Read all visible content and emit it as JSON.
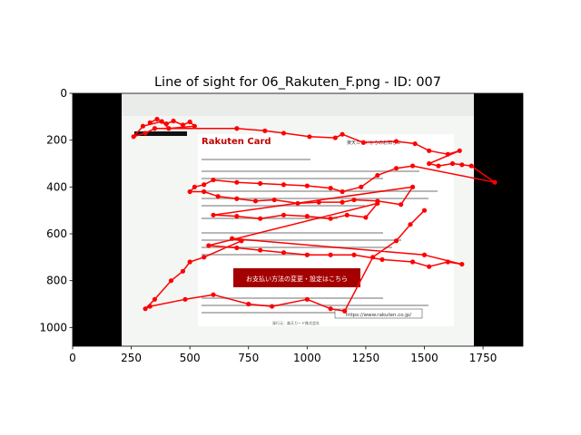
{
  "chart_data": {
    "type": "scatter",
    "title": "Line of sight for 06_Rakuten_F.png - ID: 007",
    "xlim": [
      0,
      1920
    ],
    "ylim": [
      1080,
      0
    ],
    "x_ticks": [
      0,
      250,
      500,
      750,
      1000,
      1250,
      1500,
      1750
    ],
    "y_ticks": [
      0,
      200,
      400,
      600,
      800,
      1000
    ],
    "grid": false,
    "background_image": {
      "extent_x": [
        210,
        1710
      ],
      "banner_text": "お支払い方法の変更・設定はこちら",
      "brand_text": "Rakuten Card",
      "heading_text": "楽天カードからのお知らせ",
      "url_text": "https://www.rakuten.co.jp/",
      "footer_text": "発行元：楽天カード株式会社"
    },
    "series": [
      {
        "color": "#ff0000",
        "points": [
          [
            330,
            125
          ],
          [
            360,
            110
          ],
          [
            400,
            130
          ],
          [
            430,
            118
          ],
          [
            470,
            135
          ],
          [
            500,
            122
          ],
          [
            520,
            140
          ],
          [
            410,
            150
          ],
          [
            380,
            120
          ],
          [
            300,
            140
          ],
          [
            260,
            185
          ],
          [
            310,
            170
          ],
          [
            350,
            150
          ],
          [
            700,
            150
          ],
          [
            820,
            160
          ],
          [
            900,
            170
          ],
          [
            1010,
            185
          ],
          [
            1120,
            190
          ],
          [
            1150,
            175
          ],
          [
            1240,
            210
          ],
          [
            1380,
            205
          ],
          [
            1460,
            215
          ],
          [
            1520,
            245
          ],
          [
            1600,
            260
          ],
          [
            1650,
            245
          ],
          [
            1520,
            300
          ],
          [
            1560,
            310
          ],
          [
            1620,
            300
          ],
          [
            1660,
            305
          ],
          [
            1700,
            310
          ],
          [
            1800,
            380
          ],
          [
            1450,
            310
          ],
          [
            1380,
            320
          ],
          [
            1300,
            350
          ],
          [
            1230,
            400
          ],
          [
            1150,
            420
          ],
          [
            1100,
            405
          ],
          [
            1000,
            395
          ],
          [
            900,
            390
          ],
          [
            800,
            385
          ],
          [
            700,
            380
          ],
          [
            600,
            370
          ],
          [
            560,
            390
          ],
          [
            520,
            400
          ],
          [
            500,
            420
          ],
          [
            560,
            420
          ],
          [
            620,
            440
          ],
          [
            700,
            450
          ],
          [
            780,
            460
          ],
          [
            860,
            455
          ],
          [
            960,
            470
          ],
          [
            1050,
            465
          ],
          [
            1150,
            465
          ],
          [
            1200,
            455
          ],
          [
            1300,
            460
          ],
          [
            1400,
            475
          ],
          [
            1450,
            400
          ],
          [
            600,
            520
          ],
          [
            700,
            525
          ],
          [
            800,
            535
          ],
          [
            900,
            520
          ],
          [
            1000,
            525
          ],
          [
            1100,
            535
          ],
          [
            1170,
            520
          ],
          [
            1250,
            530
          ],
          [
            1300,
            470
          ],
          [
            580,
            650
          ],
          [
            700,
            660
          ],
          [
            800,
            670
          ],
          [
            900,
            680
          ],
          [
            1000,
            690
          ],
          [
            1100,
            690
          ],
          [
            1200,
            690
          ],
          [
            1320,
            710
          ],
          [
            1450,
            720
          ],
          [
            1520,
            740
          ],
          [
            1600,
            720
          ],
          [
            1660,
            730
          ],
          [
            1500,
            690
          ],
          [
            680,
            620
          ],
          [
            720,
            630
          ],
          [
            560,
            700
          ],
          [
            500,
            720
          ],
          [
            470,
            760
          ],
          [
            420,
            800
          ],
          [
            350,
            880
          ],
          [
            310,
            920
          ],
          [
            330,
            910
          ],
          [
            480,
            880
          ],
          [
            600,
            860
          ],
          [
            750,
            900
          ],
          [
            850,
            910
          ],
          [
            1000,
            880
          ],
          [
            1100,
            920
          ],
          [
            1160,
            930
          ],
          [
            1280,
            700
          ],
          [
            1380,
            630
          ],
          [
            1440,
            560
          ],
          [
            1500,
            500
          ]
        ]
      }
    ]
  }
}
